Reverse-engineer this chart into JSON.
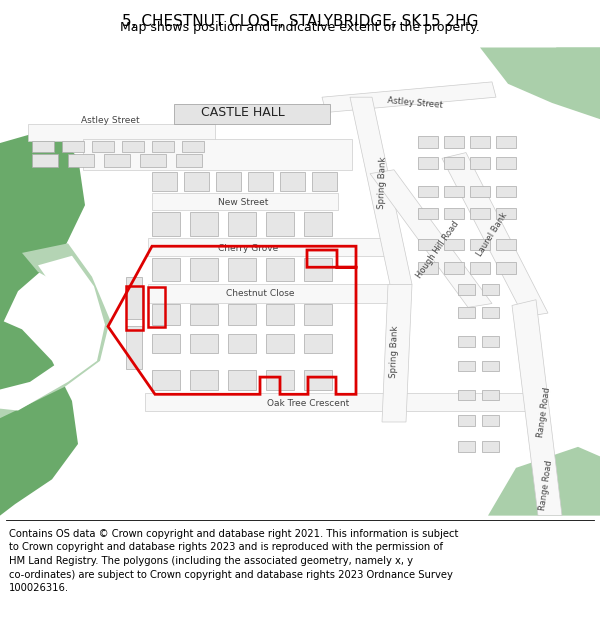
{
  "title": "5, CHESTNUT CLOSE, STALYBRIDGE, SK15 2HG",
  "subtitle": "Map shows position and indicative extent of the property.",
  "footer": "Contains OS data © Crown copyright and database right 2021. This information is subject\nto Crown copyright and database rights 2023 and is reproduced with the permission of\nHM Land Registry. The polygons (including the associated geometry, namely x, y\nco-ordinates) are subject to Crown copyright and database rights 2023 Ordnance Survey\n100026316.",
  "map_bg": "#f2f2f2",
  "road_fill": "#f8f8f8",
  "road_edge": "#cccccc",
  "bld_fill": "#e6e6e6",
  "bld_stroke": "#aaaaaa",
  "green_dark": "#6aaa6a",
  "green_light": "#aacfaa",
  "green_river": "#b4d4b4",
  "red": "#dd0000",
  "title_fs": 11,
  "sub_fs": 9,
  "foot_fs": 7.2
}
